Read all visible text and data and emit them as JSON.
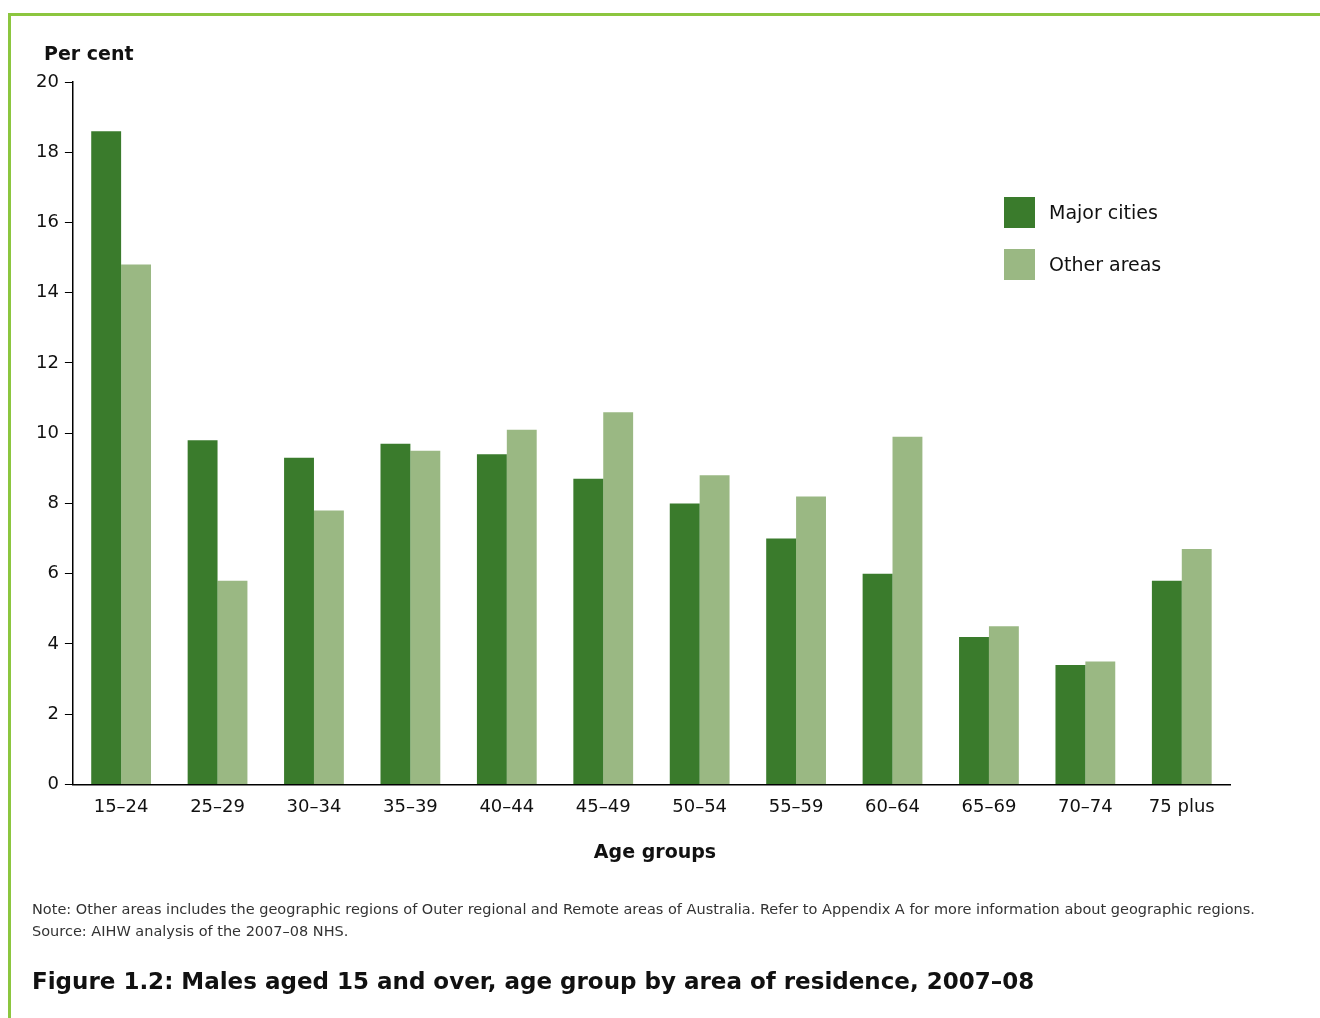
{
  "chart_data": {
    "type": "bar",
    "title": "Figure 1.2: Males aged 15 and over, age group by area of residence, 2007–08",
    "xlabel": "Age groups",
    "ylabel": "Per cent",
    "categories": [
      "15–24",
      "25–29",
      "30–34",
      "35–39",
      "40–44",
      "45–49",
      "50–54",
      "55–59",
      "60–64",
      "65–69",
      "70–74",
      "75 plus"
    ],
    "series": [
      {
        "name": "Major cities",
        "color": "#3a7b2c",
        "values": [
          18.6,
          9.8,
          9.3,
          9.7,
          9.4,
          8.7,
          8.0,
          7.0,
          6.0,
          4.2,
          3.4,
          5.8
        ]
      },
      {
        "name": "Other areas",
        "color": "#9ab883",
        "values": [
          14.8,
          5.8,
          7.8,
          9.5,
          10.1,
          10.6,
          8.8,
          8.2,
          9.9,
          4.5,
          3.5,
          6.7
        ]
      }
    ],
    "ylim": [
      0,
      20
    ],
    "yticks": [
      0,
      2,
      4,
      6,
      8,
      10,
      12,
      14,
      16,
      18,
      20
    ],
    "grid": false,
    "legend": "top right",
    "annotations": [
      "Note: Other areas includes the geographic regions of Outer regional and Remote areas of Australia. Refer to Appendix A for more information about geographic regions.",
      "Source: AIHW analysis of the 2007–08 NHS."
    ]
  }
}
